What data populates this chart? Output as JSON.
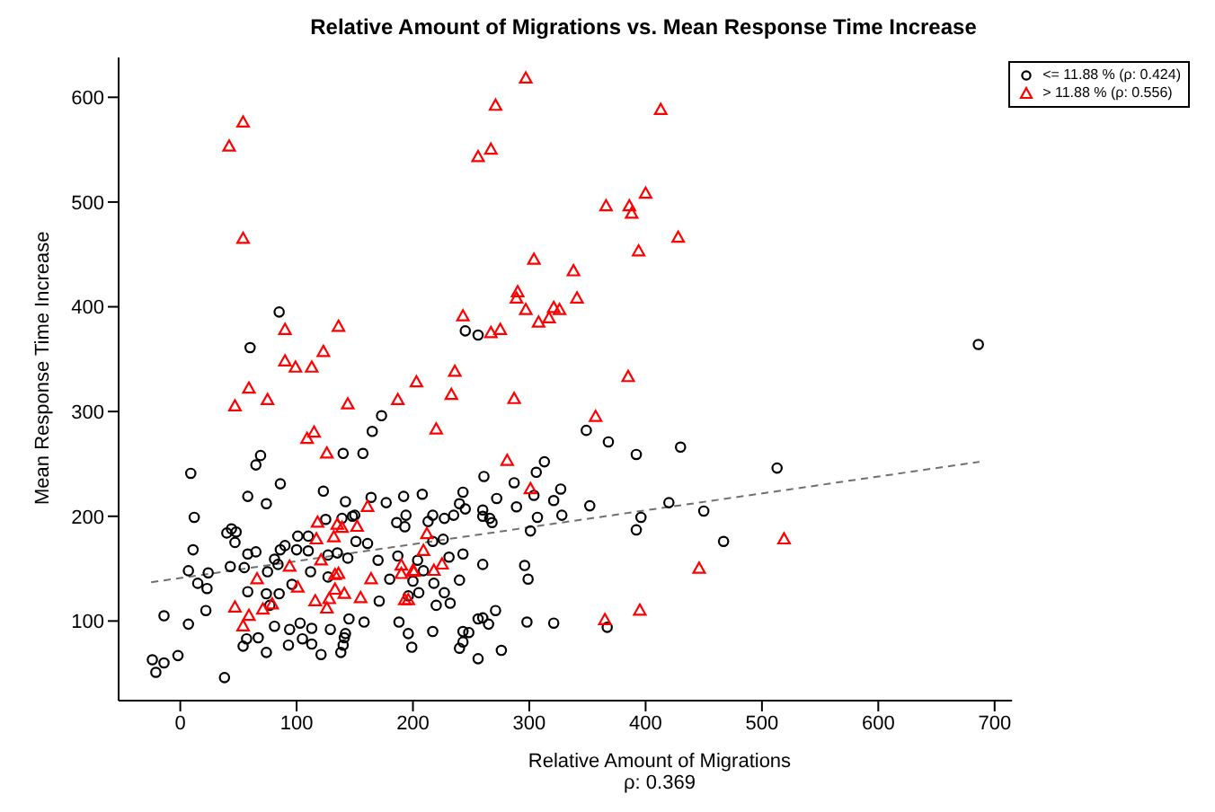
{
  "chart_data": {
    "type": "scatter",
    "title": "Relative Amount of Migrations vs. Mean Response Time Increase",
    "xlabel": "Relative Amount of Migrations",
    "ylabel": "Mean Response Time Increase",
    "annotations": [
      "ρ: 0.369"
    ],
    "xlim": [
      -53,
      715
    ],
    "ylim": [
      24,
      638
    ],
    "xticks": [
      0,
      100,
      200,
      300,
      400,
      500,
      600,
      700
    ],
    "yticks": [
      100,
      200,
      300,
      400,
      500,
      600
    ],
    "legend": "top right",
    "series": [
      {
        "name": "<= 11.88 % (ρ: 0.424)",
        "color": "#000000",
        "marker": "circle",
        "x": [
          85,
          60,
          686,
          245,
          256,
          349,
          368,
          392,
          430,
          313,
          306,
          261,
          287,
          327,
          243,
          208,
          304,
          272,
          321,
          240,
          245,
          289,
          352,
          260,
          260,
          266,
          268,
          307,
          328,
          235,
          227,
          217,
          213,
          396,
          392,
          420,
          450,
          301,
          217,
          226,
          204,
          231,
          243,
          260,
          296,
          209,
          200,
          299,
          240,
          218,
          205,
          227,
          232,
          220,
          271,
          256,
          260,
          265,
          298,
          321,
          367,
          196,
          217,
          243,
          248,
          243,
          240,
          199,
          276,
          256,
          467,
          513,
          173,
          165,
          69,
          65,
          140,
          157,
          9,
          86,
          58,
          74,
          123,
          142,
          164,
          177,
          192,
          12,
          125,
          139,
          148,
          150,
          186,
          194,
          193,
          40,
          44,
          48,
          47,
          11,
          58,
          65,
          90,
          86,
          101,
          110,
          100,
          110,
          127,
          135,
          144,
          151,
          161,
          170,
          187,
          81,
          84,
          43,
          55,
          75,
          7,
          24,
          15,
          23,
          112,
          127,
          180,
          96,
          58,
          74,
          85,
          77,
          171,
          196,
          22,
          -14,
          7,
          81,
          94,
          103,
          113,
          129,
          142,
          145,
          158,
          188,
          57,
          54,
          67,
          74,
          93,
          105,
          113,
          121,
          140,
          141,
          138,
          -2,
          -24,
          -21,
          -14,
          38
        ],
        "values": [
          395,
          361,
          364,
          377,
          373,
          282,
          271,
          259,
          266,
          252,
          242,
          238,
          232,
          226,
          223,
          221,
          220,
          217,
          215,
          212,
          207,
          209,
          210,
          206,
          200,
          198,
          194,
          199,
          201,
          201,
          198,
          201,
          195,
          199,
          187,
          213,
          205,
          186,
          176,
          178,
          158,
          161,
          164,
          154,
          153,
          148,
          138,
          140,
          139,
          136,
          127,
          127,
          117,
          115,
          110,
          102,
          103,
          97,
          99,
          98,
          94,
          88,
          90,
          90,
          89,
          80,
          74,
          75,
          72,
          64,
          176,
          246,
          296,
          281,
          258,
          249,
          260,
          260,
          241,
          231,
          219,
          212,
          224,
          214,
          218,
          213,
          219,
          199,
          197,
          198,
          200,
          201,
          194,
          201,
          190,
          184,
          188,
          185,
          175,
          168,
          164,
          166,
          172,
          168,
          181,
          181,
          168,
          167,
          163,
          165,
          160,
          176,
          174,
          158,
          162,
          159,
          154,
          152,
          151,
          147,
          148,
          146,
          136,
          131,
          147,
          142,
          140,
          135,
          128,
          126,
          126,
          115,
          119,
          124,
          110,
          105,
          97,
          95,
          92,
          98,
          93,
          92,
          88,
          102,
          99,
          99,
          83,
          76,
          84,
          70,
          77,
          83,
          78,
          68,
          77,
          84,
          70,
          67,
          63,
          51,
          60,
          46
        ]
      },
      {
        "name": "> 11.88 % (ρ: 0.556)",
        "color": "#ff0000",
        "marker": "triangle",
        "x": [
          54,
          42,
          54,
          90,
          136,
          90,
          99,
          113,
          123,
          59,
          75,
          47,
          144,
          187,
          297,
          271,
          413,
          267,
          256,
          400,
          366,
          386,
          388,
          428,
          394,
          304,
          338,
          341,
          290,
          289,
          297,
          321,
          326,
          317,
          308,
          243,
          267,
          275,
          236,
          203,
          233,
          287,
          385,
          220,
          357,
          281,
          301,
          212,
          209,
          200,
          218,
          225,
          196,
          446,
          395,
          365,
          519,
          109,
          115,
          126,
          161,
          118,
          135,
          139,
          152,
          132,
          117,
          121,
          94,
          66,
          101,
          133,
          136,
          164,
          190,
          190,
          201,
          133,
          141,
          128,
          116,
          126,
          155,
          193,
          47,
          59,
          71,
          54,
          79
        ],
        "values": [
          576,
          553,
          465,
          378,
          381,
          348,
          342,
          342,
          357,
          322,
          311,
          305,
          307,
          311,
          618,
          592,
          588,
          550,
          543,
          508,
          496,
          496,
          489,
          466,
          453,
          445,
          434,
          408,
          414,
          408,
          397,
          399,
          397,
          389,
          385,
          391,
          375,
          378,
          338,
          328,
          316,
          312,
          333,
          283,
          295,
          253,
          226,
          183,
          167,
          148,
          148,
          154,
          120,
          150,
          110,
          101,
          178,
          274,
          280,
          260,
          209,
          194,
          192,
          189,
          190,
          180,
          178,
          158,
          152,
          140,
          132,
          144,
          145,
          140,
          153,
          145,
          147,
          130,
          126,
          121,
          119,
          112,
          122,
          120,
          113,
          105,
          111,
          95,
          116
        ]
      },
      {
        "type": "line",
        "color": "#707070",
        "marker": "none",
        "line_style": "dashed",
        "x": [
          -25,
          687
        ],
        "values": [
          137,
          252
        ]
      }
    ]
  }
}
